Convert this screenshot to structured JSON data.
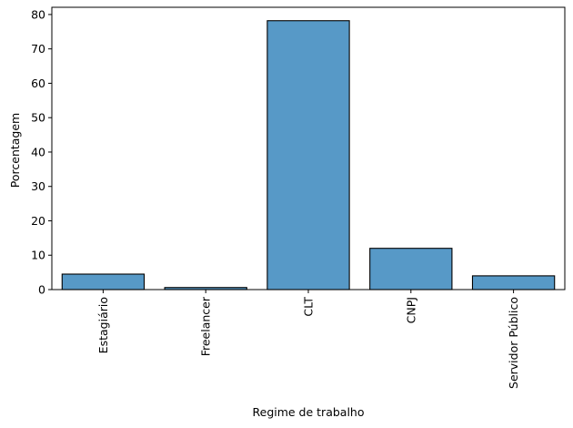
{
  "chart_data": {
    "type": "bar",
    "categories": [
      "Estagiário",
      "Freelancer",
      "CLT",
      "CNPJ",
      "Servidor Público"
    ],
    "values": [
      4.5,
      0.6,
      78.2,
      12.0,
      4.0
    ],
    "xlabel": "Regime de trabalho",
    "ylabel": "Porcentagem",
    "ylim": [
      0,
      82.1
    ],
    "yticks": [
      0,
      10,
      20,
      30,
      40,
      50,
      60,
      70,
      80
    ],
    "ytick_labels": [
      "0",
      "10",
      "20",
      "30",
      "40",
      "50",
      "60",
      "70",
      "80"
    ],
    "grid": false,
    "legend": "none",
    "colors": {
      "bar_fill": "#5799c7",
      "bar_edge": "#000000",
      "axis": "#000000"
    }
  }
}
